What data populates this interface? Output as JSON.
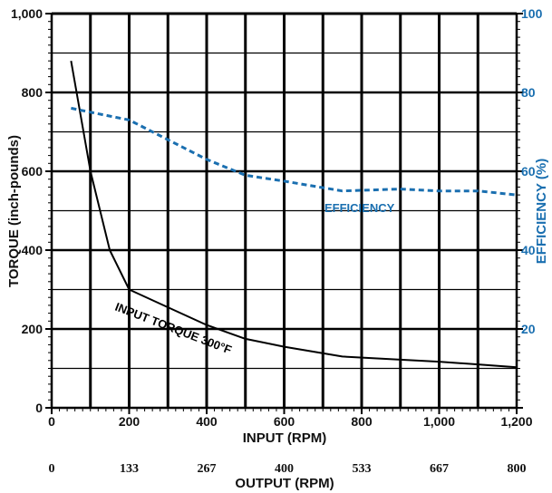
{
  "chart_data": {
    "type": "line",
    "x": [
      50,
      100,
      150,
      200,
      300,
      400,
      500,
      600,
      750,
      900,
      1000,
      1100,
      1200
    ],
    "xlim": [
      0,
      1200
    ],
    "xlabel": "INPUT (RPM)",
    "x_ticks": [
      "0",
      "200",
      "400",
      "600",
      "800",
      "1,000",
      "1,200"
    ],
    "secondary_x": {
      "label": "OUTPUT (RPM)",
      "ticks": [
        "0",
        "133",
        "267",
        "400",
        "533",
        "667",
        "800"
      ]
    },
    "y_left": {
      "label": "TORQUE (inch-pounds)",
      "ylim": [
        0,
        1000
      ],
      "ticks": [
        "0",
        "200",
        "400",
        "600",
        "800",
        "1,000"
      ]
    },
    "y_right": {
      "label": "EFFICIENCY (%)",
      "ylim": [
        0,
        100
      ],
      "ticks": [
        "20",
        "40",
        "60",
        "80",
        "100"
      ],
      "color": "#1a6fb0"
    },
    "series": [
      {
        "name": "INPUT TORQUE 300°F",
        "axis": "left",
        "color": "#000000",
        "style": "solid",
        "values": [
          880,
          600,
          400,
          300,
          255,
          210,
          175,
          155,
          130,
          122,
          117,
          110,
          103
        ]
      },
      {
        "name": "EFFICIENCY",
        "axis": "right",
        "color": "#1a6fb0",
        "style": "dashed",
        "values": [
          76,
          75,
          74,
          73,
          68,
          63,
          59,
          57.5,
          55,
          55.5,
          55,
          55,
          54
        ]
      }
    ],
    "grid": true
  }
}
